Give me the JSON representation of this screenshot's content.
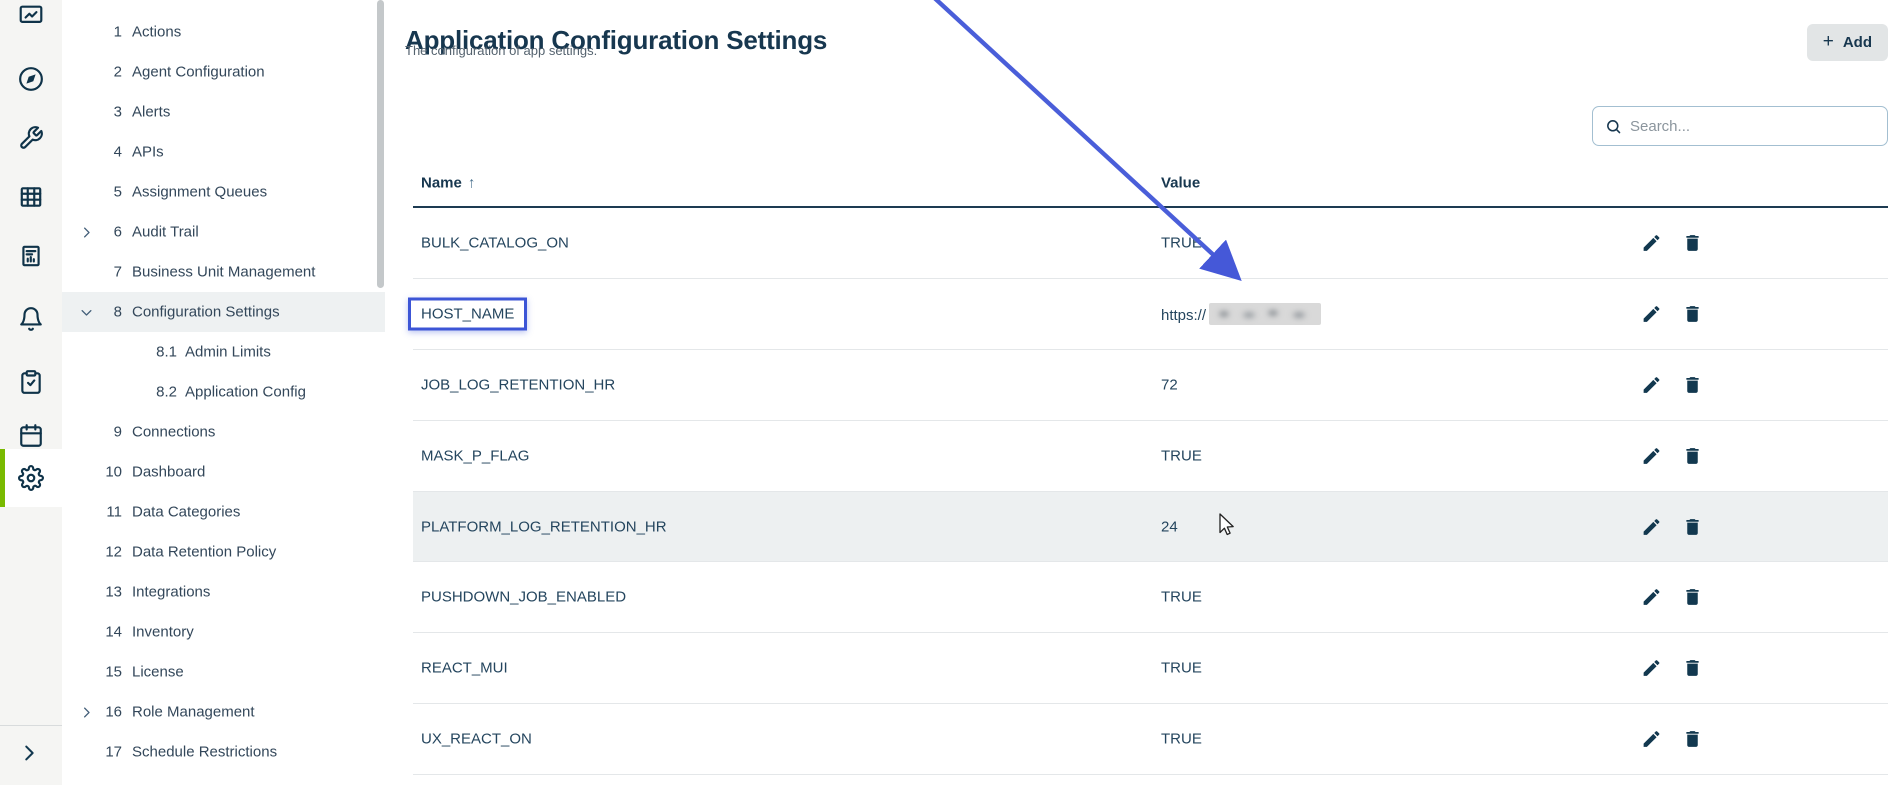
{
  "rail": {
    "icons": [
      {
        "name": "presentation-chart-icon",
        "cutoff": true
      },
      {
        "name": "compass-icon"
      },
      {
        "name": "wrench-icon"
      },
      {
        "name": "table-grid-icon"
      },
      {
        "name": "report-document-icon"
      },
      {
        "name": "bell-icon"
      },
      {
        "name": "clipboard-check-icon"
      },
      {
        "name": "calendar-icon"
      },
      {
        "name": "gear-icon",
        "active": true
      }
    ],
    "expand_icon": "chevron-right-icon"
  },
  "sidebar": {
    "items": [
      {
        "num": "1",
        "label": "Actions"
      },
      {
        "num": "2",
        "label": "Agent Configuration"
      },
      {
        "num": "3",
        "label": "Alerts"
      },
      {
        "num": "4",
        "label": "APIs"
      },
      {
        "num": "5",
        "label": "Assignment Queues"
      },
      {
        "num": "6",
        "label": "Audit Trail",
        "chevron": "right"
      },
      {
        "num": "7",
        "label": "Business Unit Management"
      },
      {
        "num": "8",
        "label": "Configuration Settings",
        "chevron": "down",
        "selected": true
      },
      {
        "num": "8.1",
        "label": "Admin Limits",
        "sub": true
      },
      {
        "num": "8.2",
        "label": "Application Config",
        "sub": true
      },
      {
        "num": "9",
        "label": "Connections"
      },
      {
        "num": "10",
        "label": "Dashboard"
      },
      {
        "num": "11",
        "label": "Data Categories"
      },
      {
        "num": "12",
        "label": "Data Retention Policy"
      },
      {
        "num": "13",
        "label": "Integrations"
      },
      {
        "num": "14",
        "label": "Inventory"
      },
      {
        "num": "15",
        "label": "License"
      },
      {
        "num": "16",
        "label": "Role Management",
        "chevron": "right"
      },
      {
        "num": "17",
        "label": "Schedule Restrictions"
      }
    ]
  },
  "header": {
    "title": "Application Configuration Settings",
    "subtitle": "The configuration of app settings.",
    "add_button_label": "Add"
  },
  "search": {
    "placeholder": "Search..."
  },
  "table": {
    "columns": {
      "name": "Name",
      "value": "Value"
    },
    "sort_indicator": "↑",
    "rows": [
      {
        "name": "BULK_CATALOG_ON",
        "value": "TRUE"
      },
      {
        "name": "HOST_NAME",
        "value": "https://",
        "redacted": true,
        "annotated": true
      },
      {
        "name": "JOB_LOG_RETENTION_HR",
        "value": "72"
      },
      {
        "name": "MASK_P_FLAG",
        "value": "TRUE"
      },
      {
        "name": "PLATFORM_LOG_RETENTION_HR",
        "value": "24",
        "hover": true
      },
      {
        "name": "PUSHDOWN_JOB_ENABLED",
        "value": "TRUE"
      },
      {
        "name": "REACT_MUI",
        "value": "TRUE"
      },
      {
        "name": "UX_REACT_ON",
        "value": "TRUE"
      }
    ]
  },
  "annotations": {
    "boxed_setting": "HOST_NAME",
    "arrow_points_to": "HOST_NAME value",
    "redacted_value_prefix": "https://"
  },
  "colors": {
    "accent_navy": "#17374f",
    "active_green": "#79ba00",
    "annotation_blue": "#4558d8",
    "row_hover": "#edf0f1",
    "menu_selected": "#eef1f2",
    "rail_bg": "#f5f5f3"
  }
}
